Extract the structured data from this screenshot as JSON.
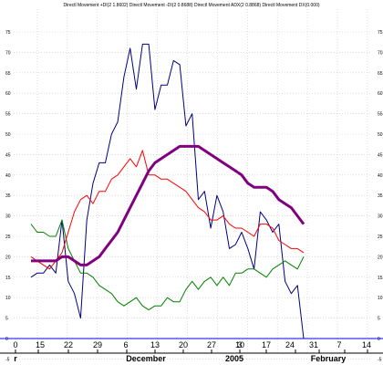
{
  "chart_data": {
    "type": "line",
    "title": "Directl Movement +DI(2 1.8602) Directl Movement -DI(2 0.8688) Directl Movement ADX(2 0.8868) Directl Movement DX(0.000)",
    "xlabel": "",
    "ylabel": "",
    "ylim": [
      -10,
      80
    ],
    "yticks": [
      -5,
      0,
      5,
      10,
      15,
      20,
      25,
      30,
      35,
      40,
      45,
      50,
      55,
      60,
      65,
      70,
      75
    ],
    "x_tick_labels": [
      "0",
      "15",
      "22",
      "29",
      "6",
      "13",
      "20",
      "27",
      "3",
      "10",
      "17",
      "24",
      "31",
      "7",
      "14"
    ],
    "month_labels": [
      "r",
      "December",
      "2005",
      "February"
    ],
    "grid": true,
    "legend": "none",
    "series": [
      {
        "color": "#000080",
        "values": [
          [
            0,
            15
          ],
          [
            1,
            16
          ],
          [
            2,
            16
          ],
          [
            3,
            18
          ],
          [
            4,
            16
          ],
          [
            5,
            29
          ],
          [
            6,
            14
          ],
          [
            7,
            11
          ],
          [
            8,
            5
          ],
          [
            9,
            29
          ],
          [
            10,
            38
          ],
          [
            11,
            43
          ],
          [
            12,
            43
          ],
          [
            13,
            50
          ],
          [
            14,
            53
          ],
          [
            15,
            64
          ],
          [
            16,
            71
          ],
          [
            17,
            61
          ],
          [
            18,
            72
          ],
          [
            19,
            72
          ],
          [
            20,
            56
          ],
          [
            21,
            62
          ],
          [
            22,
            62
          ],
          [
            23,
            68
          ],
          [
            24,
            67
          ],
          [
            25,
            52
          ],
          [
            26,
            55
          ],
          [
            27,
            34
          ],
          [
            28,
            36
          ],
          [
            29,
            27
          ],
          [
            30,
            35
          ],
          [
            31,
            31
          ],
          [
            32,
            22
          ],
          [
            33,
            23
          ],
          [
            34,
            26
          ],
          [
            35,
            22
          ],
          [
            36,
            17
          ],
          [
            37,
            31
          ],
          [
            38,
            29
          ],
          [
            39,
            26
          ],
          [
            40,
            28
          ],
          [
            41,
            14
          ],
          [
            42,
            11
          ],
          [
            43,
            13
          ],
          [
            44,
            0
          ]
        ]
      },
      {
        "color": "#008000",
        "values": [
          [
            0,
            28
          ],
          [
            1,
            26
          ],
          [
            2,
            26
          ],
          [
            3,
            25
          ],
          [
            4,
            25
          ],
          [
            5,
            29
          ],
          [
            6,
            22
          ],
          [
            7,
            19
          ],
          [
            8,
            16
          ],
          [
            9,
            16
          ],
          [
            10,
            15
          ],
          [
            11,
            13
          ],
          [
            12,
            12
          ],
          [
            13,
            11
          ],
          [
            14,
            9
          ],
          [
            15,
            8
          ],
          [
            16,
            9
          ],
          [
            17,
            10
          ],
          [
            18,
            8
          ],
          [
            19,
            7
          ],
          [
            20,
            8
          ],
          [
            21,
            8
          ],
          [
            22,
            10
          ],
          [
            23,
            9
          ],
          [
            24,
            9
          ],
          [
            25,
            12
          ],
          [
            26,
            14
          ],
          [
            27,
            12
          ],
          [
            28,
            14
          ],
          [
            29,
            15
          ],
          [
            30,
            13
          ],
          [
            31,
            15
          ],
          [
            32,
            13
          ],
          [
            33,
            16
          ],
          [
            34,
            16
          ],
          [
            35,
            17
          ],
          [
            36,
            17
          ],
          [
            37,
            16
          ],
          [
            38,
            15
          ],
          [
            39,
            17
          ],
          [
            40,
            18
          ],
          [
            41,
            19
          ],
          [
            42,
            18
          ],
          [
            43,
            17
          ],
          [
            44,
            20
          ]
        ]
      },
      {
        "color": "#ff0000",
        "values": [
          [
            0,
            20
          ],
          [
            1,
            19
          ],
          [
            2,
            18
          ],
          [
            3,
            17
          ],
          [
            4,
            19
          ],
          [
            5,
            21
          ],
          [
            6,
            26
          ],
          [
            7,
            31
          ],
          [
            8,
            34
          ],
          [
            9,
            35
          ],
          [
            10,
            33
          ],
          [
            11,
            36
          ],
          [
            12,
            36
          ],
          [
            13,
            39
          ],
          [
            14,
            40
          ],
          [
            15,
            42
          ],
          [
            16,
            44
          ],
          [
            17,
            42
          ],
          [
            18,
            46
          ],
          [
            19,
            40
          ],
          [
            20,
            40
          ],
          [
            21,
            39
          ],
          [
            22,
            39
          ],
          [
            23,
            38
          ],
          [
            24,
            37
          ],
          [
            25,
            36
          ],
          [
            26,
            34
          ],
          [
            27,
            32
          ],
          [
            28,
            31
          ],
          [
            29,
            29
          ],
          [
            30,
            29
          ],
          [
            31,
            30
          ],
          [
            32,
            28
          ],
          [
            33,
            27
          ],
          [
            34,
            27
          ],
          [
            35,
            26
          ],
          [
            36,
            25
          ],
          [
            37,
            28
          ],
          [
            38,
            28
          ],
          [
            39,
            27
          ],
          [
            40,
            24
          ],
          [
            41,
            23
          ],
          [
            42,
            22
          ],
          [
            43,
            22
          ],
          [
            44,
            21
          ]
        ]
      },
      {
        "color": "#800080",
        "values": [
          [
            0,
            19
          ],
          [
            1,
            19
          ],
          [
            2,
            19
          ],
          [
            3,
            19
          ],
          [
            4,
            19
          ],
          [
            5,
            20
          ],
          [
            6,
            20
          ],
          [
            7,
            19
          ],
          [
            8,
            18
          ],
          [
            9,
            18
          ],
          [
            10,
            19
          ],
          [
            11,
            20
          ],
          [
            12,
            22
          ],
          [
            13,
            24
          ],
          [
            14,
            26
          ],
          [
            15,
            29
          ],
          [
            16,
            32
          ],
          [
            17,
            35
          ],
          [
            18,
            38
          ],
          [
            19,
            41
          ],
          [
            20,
            43
          ],
          [
            21,
            44
          ],
          [
            22,
            45
          ],
          [
            23,
            46
          ],
          [
            24,
            47
          ],
          [
            25,
            47
          ],
          [
            26,
            47
          ],
          [
            27,
            47
          ],
          [
            28,
            46
          ],
          [
            29,
            45
          ],
          [
            30,
            44
          ],
          [
            31,
            43
          ],
          [
            32,
            42
          ],
          [
            33,
            41
          ],
          [
            34,
            40
          ],
          [
            35,
            38
          ],
          [
            36,
            37
          ],
          [
            37,
            37
          ],
          [
            38,
            37
          ],
          [
            39,
            36
          ],
          [
            40,
            34
          ],
          [
            41,
            33
          ],
          [
            42,
            32
          ],
          [
            43,
            30
          ],
          [
            44,
            28
          ]
        ]
      }
    ],
    "reference_line": {
      "value": 0,
      "color": "#0000ff"
    }
  }
}
